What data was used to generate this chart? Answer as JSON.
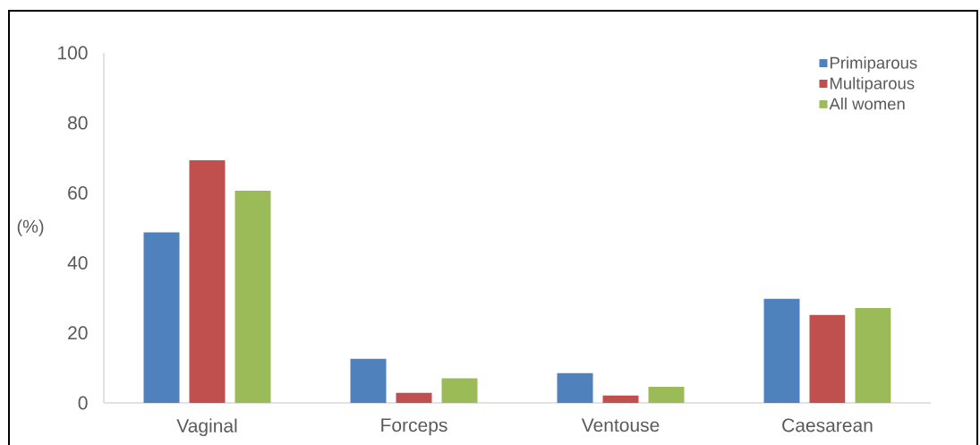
{
  "chart_data": {
    "type": "bar",
    "ylabel": "(%)",
    "categories": [
      "Vaginal",
      "Forceps",
      "Ventouse",
      "Caesarean"
    ],
    "series": [
      {
        "name": "Primiparous",
        "color": "#4f81bd",
        "values": [
          48.7,
          12.6,
          8.5,
          29.7
        ]
      },
      {
        "name": "Multiparous",
        "color": "#c0504d",
        "values": [
          69.3,
          2.9,
          2.1,
          25.1
        ]
      },
      {
        "name": "All women",
        "color": "#9bbb59",
        "values": [
          60.6,
          7.0,
          4.6,
          27.1
        ]
      }
    ],
    "ylim": [
      0,
      100
    ],
    "yticks": [
      0,
      20,
      40,
      60,
      80,
      100
    ],
    "grid": false,
    "legend": "top right"
  }
}
